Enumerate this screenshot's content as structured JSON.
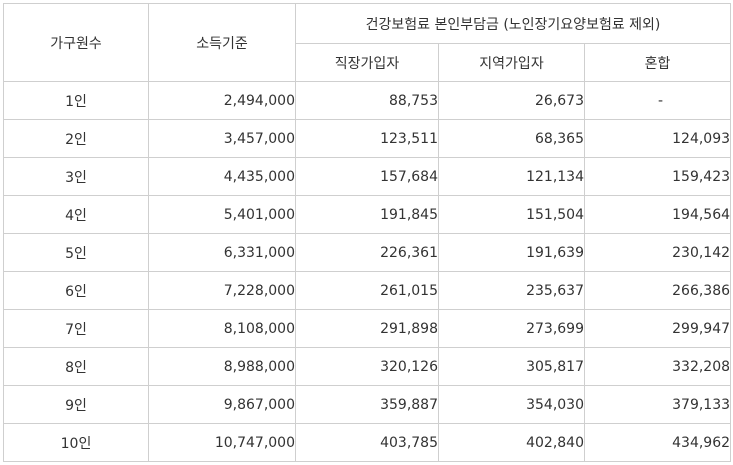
{
  "table": {
    "header": {
      "household": "가구원수",
      "income": "소득기준",
      "premium_group": "건강보험료 본인부담금 (노인장기요양보험료 제외)",
      "employee": "직장가입자",
      "local": "지역가입자",
      "mixed": "혼합"
    },
    "rows": [
      {
        "household": "1인",
        "income": "2,494,000",
        "employee": "88,753",
        "local": "26,673",
        "mixed": "-"
      },
      {
        "household": "2인",
        "income": "3,457,000",
        "employee": "123,511",
        "local": "68,365",
        "mixed": "124,093"
      },
      {
        "household": "3인",
        "income": "4,435,000",
        "employee": "157,684",
        "local": "121,134",
        "mixed": "159,423"
      },
      {
        "household": "4인",
        "income": "5,401,000",
        "employee": "191,845",
        "local": "151,504",
        "mixed": "194,564"
      },
      {
        "household": "5인",
        "income": "6,331,000",
        "employee": "226,361",
        "local": "191,639",
        "mixed": "230,142"
      },
      {
        "household": "6인",
        "income": "7,228,000",
        "employee": "261,015",
        "local": "235,637",
        "mixed": "266,386"
      },
      {
        "household": "7인",
        "income": "8,108,000",
        "employee": "291,898",
        "local": "273,699",
        "mixed": "299,947"
      },
      {
        "household": "8인",
        "income": "8,988,000",
        "employee": "320,126",
        "local": "305,817",
        "mixed": "332,208"
      },
      {
        "household": "9인",
        "income": "9,867,000",
        "employee": "359,887",
        "local": "354,030",
        "mixed": "379,133"
      },
      {
        "household": "10인",
        "income": "10,747,000",
        "employee": "403,785",
        "local": "402,840",
        "mixed": "434,962"
      }
    ]
  }
}
